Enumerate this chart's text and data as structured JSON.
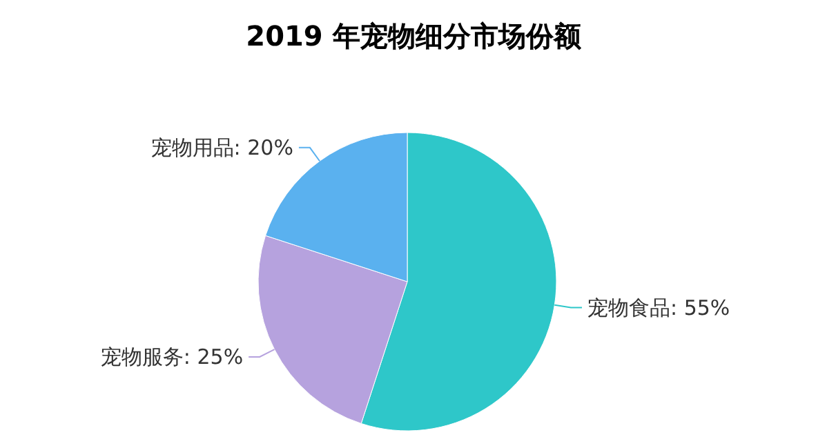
{
  "chart_data": {
    "type": "pie",
    "title": "2019 年宠物细分市场份额",
    "categories": [
      "宠物食品",
      "宠物服务",
      "宠物用品"
    ],
    "values": [
      55,
      25,
      20
    ],
    "value_labels": [
      "55%",
      "25%",
      "20%"
    ],
    "colors": [
      "#2ec7c9",
      "#b6a2de",
      "#5ab1ef"
    ]
  }
}
